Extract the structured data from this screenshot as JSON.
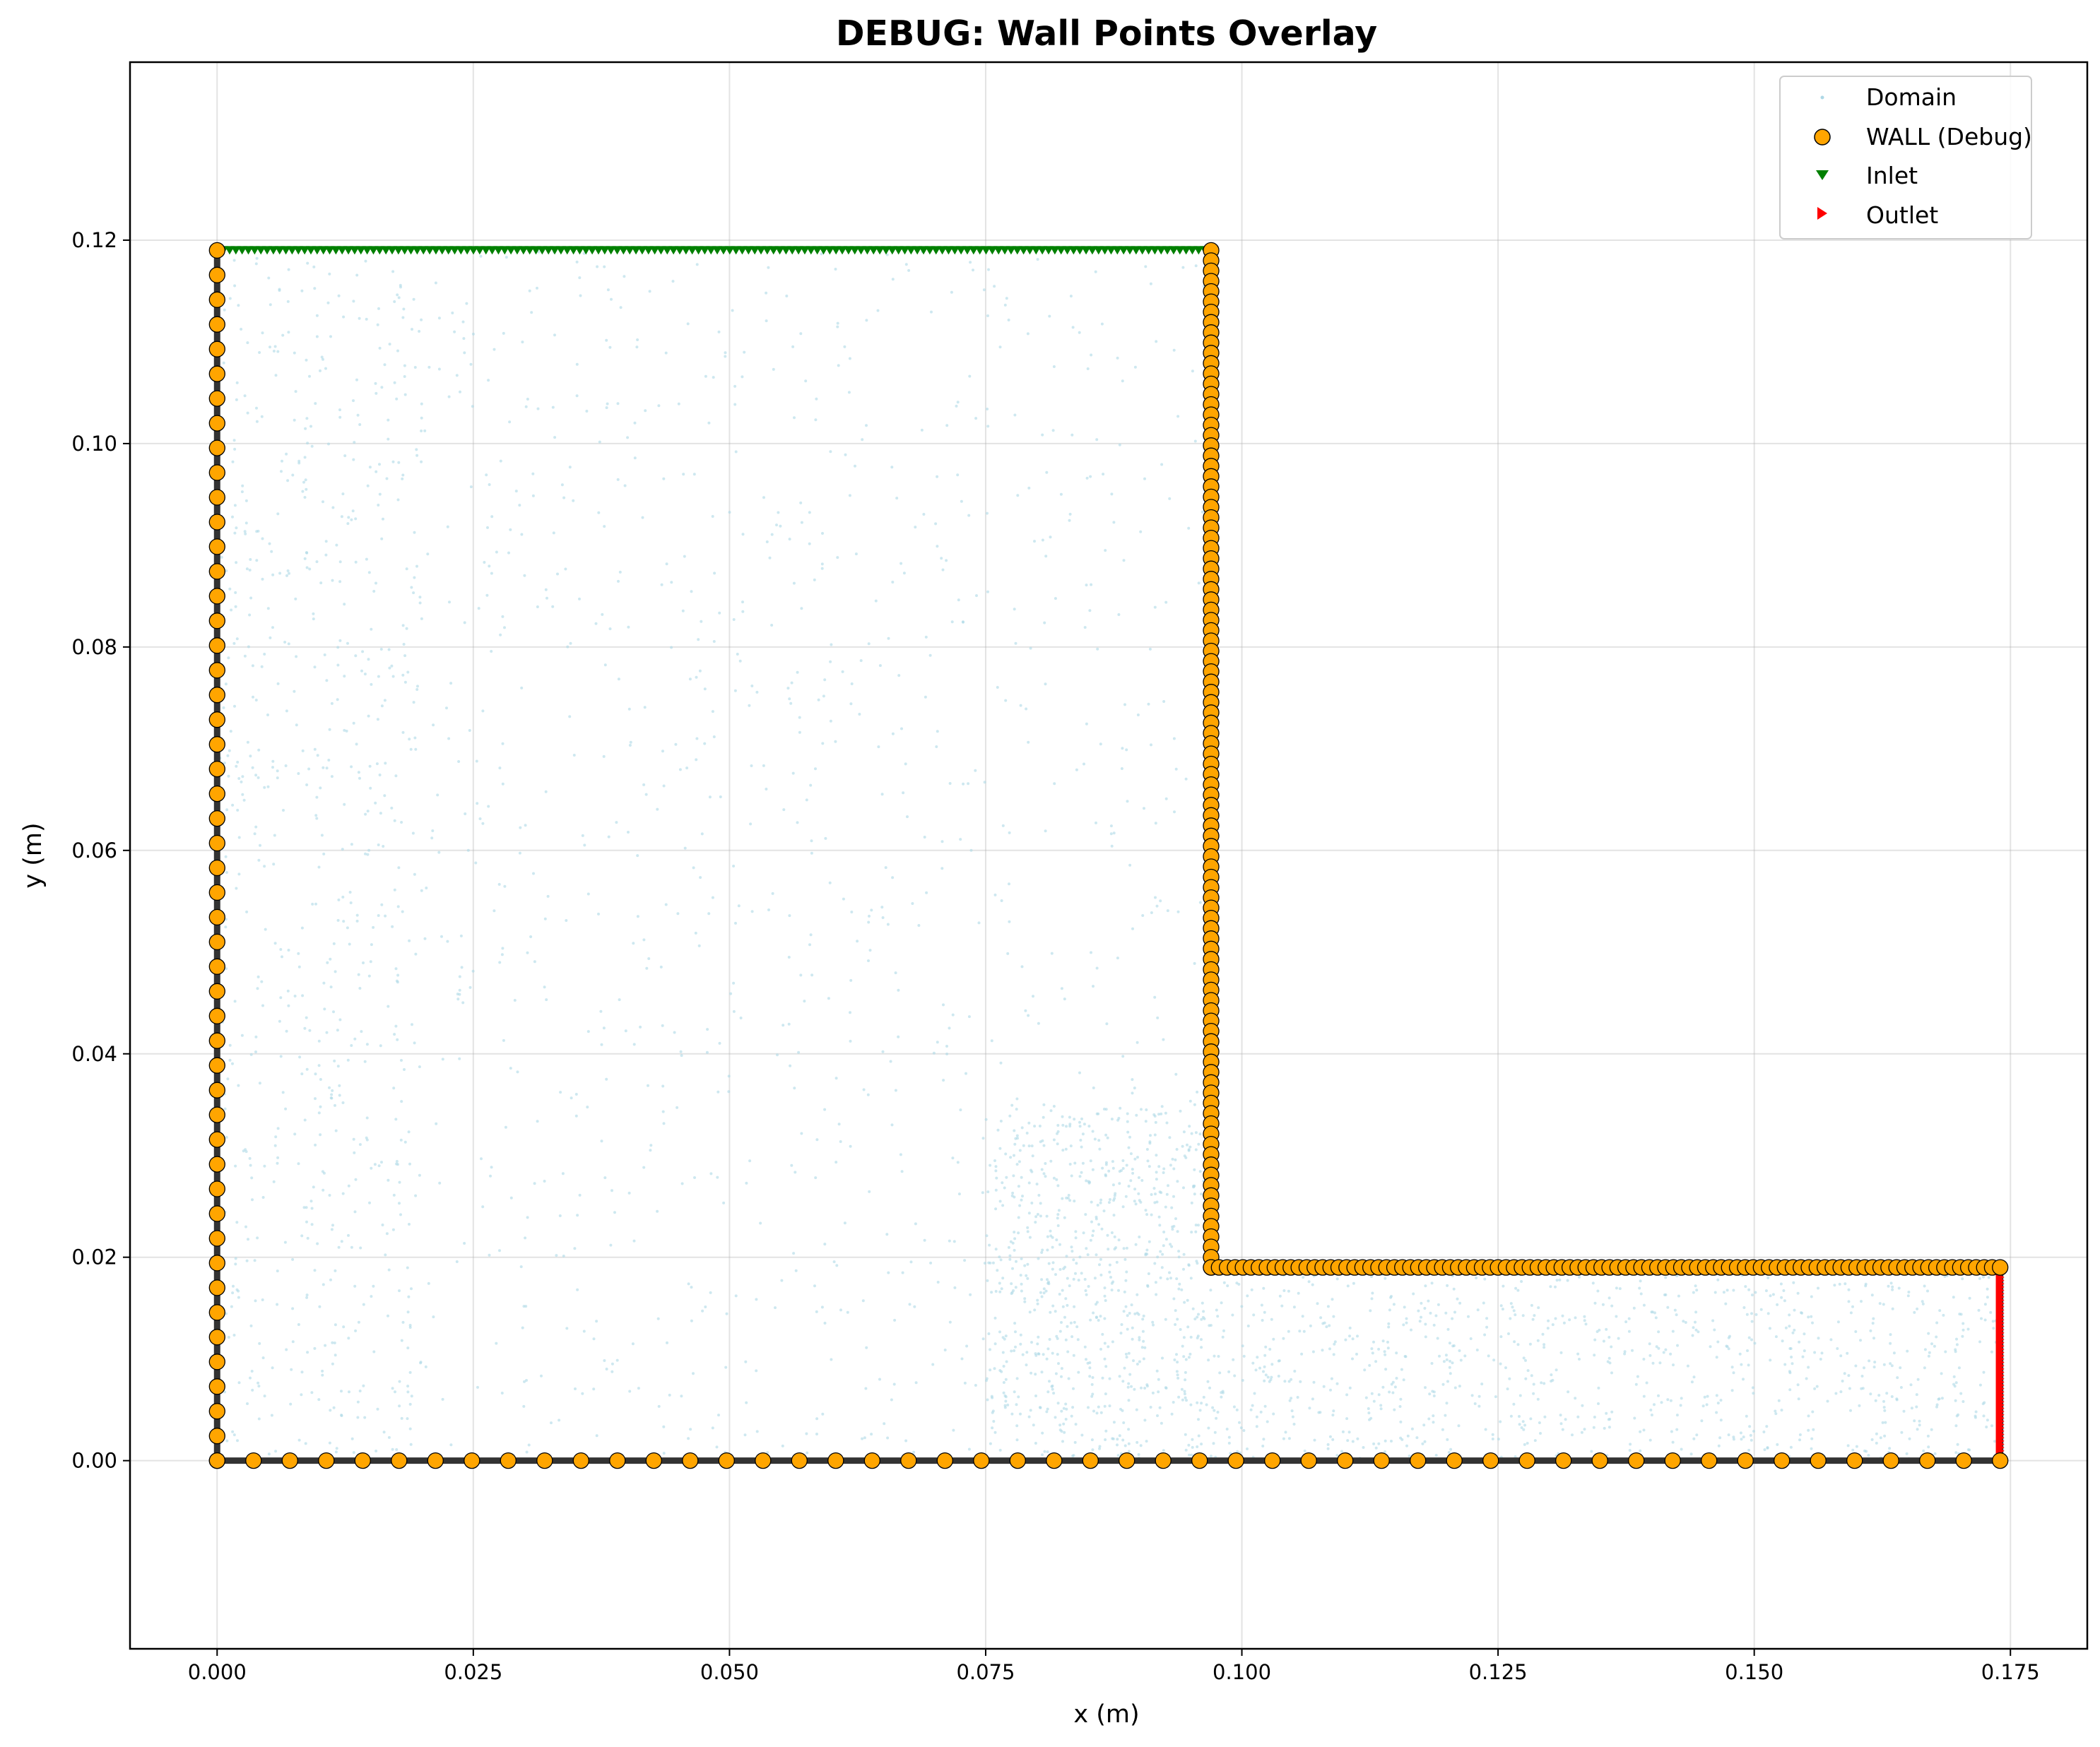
{
  "chart_data": {
    "type": "scatter",
    "title": "DEBUG: Wall Points Overlay",
    "xlabel": "x (m)",
    "ylabel": "y (m)",
    "xlim": [
      -0.0085,
      0.1825
    ],
    "ylim": [
      -0.0185,
      0.1375
    ],
    "xticks": [
      0.0,
      0.025,
      0.05,
      0.075,
      0.1,
      0.125,
      0.15,
      0.175
    ],
    "xtick_labels": [
      "0.000",
      "0.025",
      "0.050",
      "0.075",
      "0.100",
      "0.125",
      "0.150",
      "0.175"
    ],
    "yticks": [
      0.0,
      0.02,
      0.04,
      0.06,
      0.08,
      0.1,
      0.12
    ],
    "ytick_labels": [
      "0.00",
      "0.02",
      "0.04",
      "0.06",
      "0.08",
      "0.10",
      "0.12"
    ],
    "grid": true,
    "legend_position": "top-right",
    "geometry": {
      "boundary_polyline": [
        [
          0,
          0.119
        ],
        [
          0,
          0
        ],
        [
          0.174,
          0
        ],
        [
          0.174,
          0.019
        ]
      ],
      "step": {
        "x": 0.097,
        "y_top": 0.119,
        "y_bottom": 0.019,
        "x_end": 0.174
      }
    },
    "series": [
      {
        "name": "Domain",
        "marker": "point",
        "color": "#add8e6",
        "description_regions": [
          {
            "x": [
              0.0,
              0.097
            ],
            "y": [
              0.0,
              0.119
            ],
            "count": 1200
          },
          {
            "x": [
              0.0,
              0.02
            ],
            "y": [
              0.0,
              0.119
            ],
            "count": 500
          },
          {
            "x": [
              0.075,
              0.097
            ],
            "y": [
              0.0,
              0.035
            ],
            "count": 700
          },
          {
            "x": [
              0.097,
              0.174
            ],
            "y": [
              0.0,
              0.019
            ],
            "count": 900
          }
        ]
      },
      {
        "name": "WALL (Debug)",
        "marker": "circle",
        "color": "#ffa500",
        "edgecolor": "#000000",
        "segments": [
          {
            "from": [
              0,
              0
            ],
            "to": [
              0,
              0.119
            ],
            "count": 50
          },
          {
            "from": [
              0,
              0
            ],
            "to": [
              0.174,
              0
            ],
            "count": 50
          },
          {
            "from": [
              0.097,
              0.119
            ],
            "to": [
              0.097,
              0.019
            ],
            "count": 100
          },
          {
            "from": [
              0.097,
              0.019
            ],
            "to": [
              0.174,
              0.019
            ],
            "count": 100
          }
        ]
      },
      {
        "name": "Inlet",
        "marker": "triangle-down",
        "color": "#008000",
        "segments": [
          {
            "from": [
              0,
              0.119
            ],
            "to": [
              0.097,
              0.119
            ],
            "count": 160
          }
        ]
      },
      {
        "name": "Outlet",
        "marker": "triangle-right",
        "color": "#ff0000",
        "segments": [
          {
            "from": [
              0.174,
              0
            ],
            "to": [
              0.174,
              0.019
            ],
            "count": 60
          }
        ]
      }
    ]
  }
}
